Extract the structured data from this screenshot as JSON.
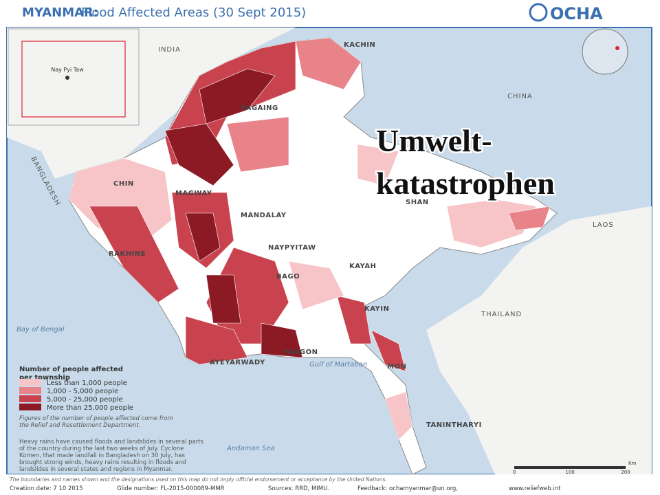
{
  "header": {
    "country": "MYANMAR:",
    "title": "Flood Affected Areas (30 Sept 2015)",
    "logo": "OCHA"
  },
  "overlay": {
    "line1": "Umwelt-",
    "line2": "katastrophen"
  },
  "inset": {
    "capital": "Nay Pyi Taw"
  },
  "labels": [
    "INDIA",
    "KACHIN",
    "CHINA",
    "SAGAING",
    "BANGLADESH",
    "CHIN",
    "MAGWAY",
    "MANDALAY",
    "SHAN",
    "LAOS",
    "NAYPYITAW",
    "KAYAH",
    "RAKHINE",
    "BAGO",
    "KAYIN",
    "THAILAND",
    "Bay of Bengal",
    "AYEYARWADY",
    "YANGON",
    "Gulf of Martaban",
    "MON",
    "Andaman Sea",
    "TANINTHARYI"
  ],
  "legend": {
    "title": "Number of people affected per township",
    "items": [
      "Less than 1,000 people",
      "1,000 - 5,000 people",
      "5,000 - 25,000 people",
      "More than 25,000 people"
    ]
  },
  "notes": [
    "Figures of the number of people affected come from the Relief and Resettlement Department.",
    "Heavy rains have caused floods and landslides in several parts of the country during the last two weeks of July. Cyclone Komen, that made landfall in Bangladesh on 30 July, has brought strong winds, heavy rains resulting in floods and landslides in several states and regions in Myanmar."
  ],
  "scale": {
    "ticks": [
      "0",
      "100",
      "200"
    ],
    "unit": "Km"
  },
  "footer": {
    "disclaimer": "The boundaries and names shown and the designations used on this map do not imply official endorsement or acceptance by the United Nations.",
    "creation": "Creation date: 7 10 2015",
    "glide": "Glide number: FL-2015-000089-MMR",
    "sources": "Sources: RRD, MIMU.",
    "feedback": "Feedback: ochamyanmar@un.org,",
    "web": "www.reliefweb.int"
  }
}
